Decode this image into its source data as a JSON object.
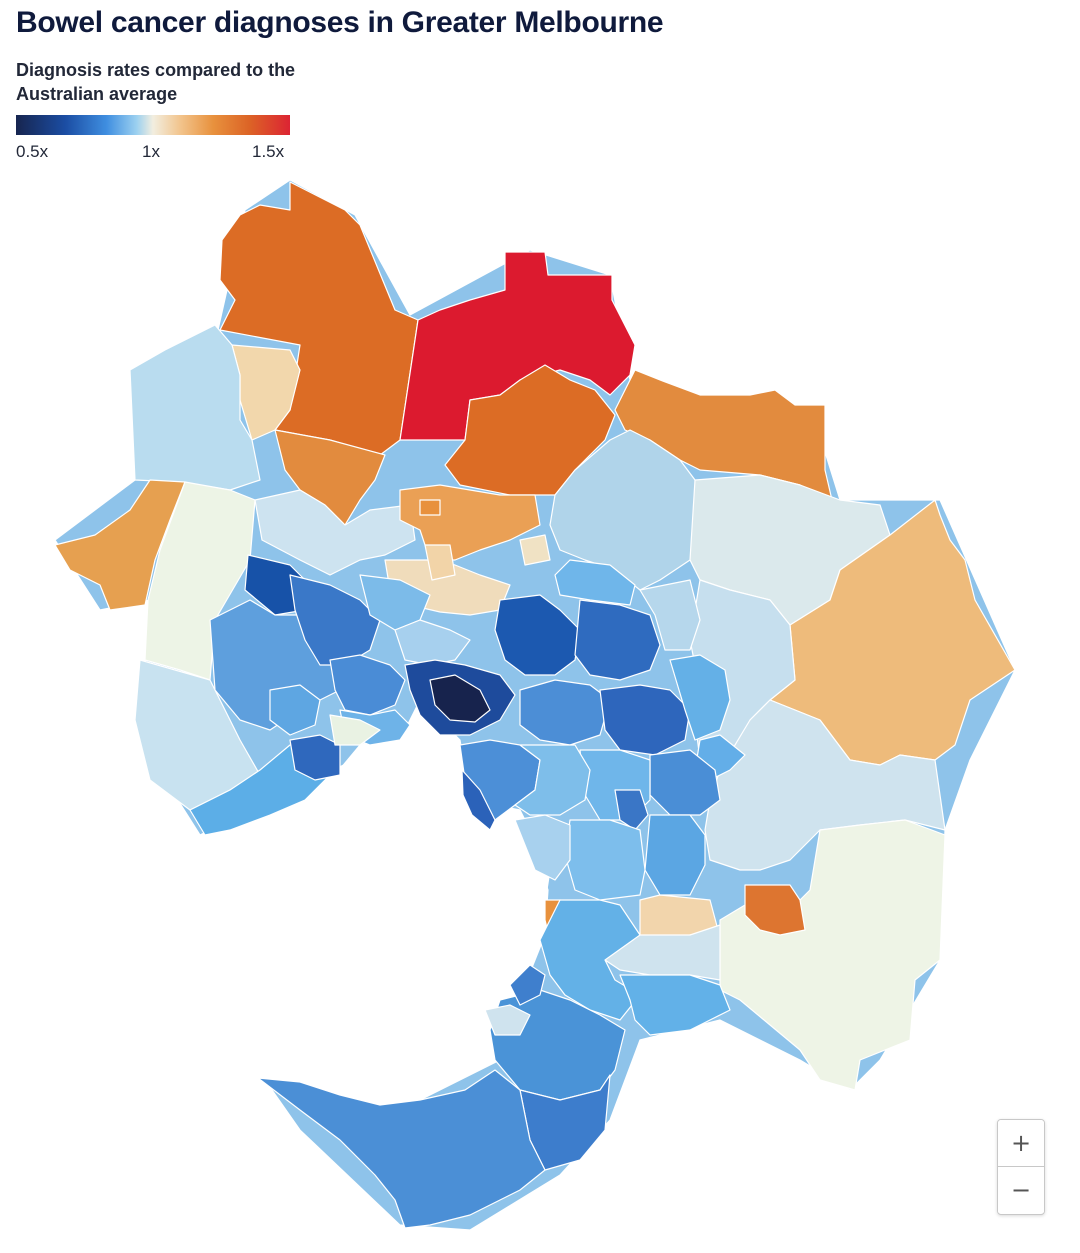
{
  "title": "Bowel cancer diagnoses in Greater Melbourne",
  "subtitle": "Diagnosis rates compared to the Australian average",
  "legend": {
    "ticks": [
      "0.5x",
      "1x",
      "1.5x"
    ],
    "domain": [
      0.5,
      1.5
    ]
  },
  "zoom": {
    "in_label": "+",
    "out_label": "−"
  },
  "colors": {
    "lowest": "#17254f",
    "low": "#1b4da3",
    "below_avg": "#5aaee8",
    "average": "#f2eee0",
    "above_avg": "#f2c48c",
    "high": "#dc6426",
    "highest": "#dc2433"
  }
}
